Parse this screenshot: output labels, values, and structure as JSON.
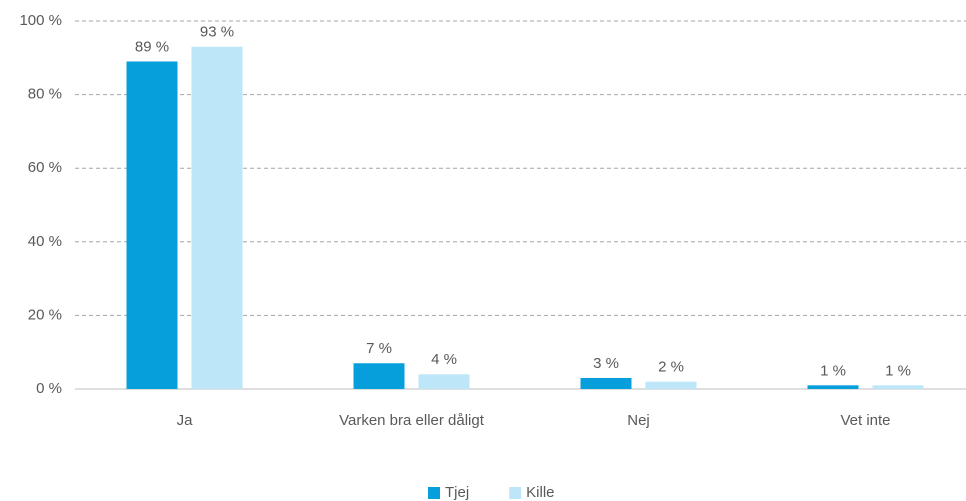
{
  "chart_data": {
    "type": "bar",
    "categories": [
      "Ja",
      "Varken bra eller dåligt",
      "Nej",
      "Vet inte"
    ],
    "series": [
      {
        "name": "Tjej",
        "color": "#069fdc",
        "values": [
          89,
          7,
          3,
          1
        ],
        "value_labels": [
          "89 %",
          "7 %",
          "3 %",
          "1 %"
        ]
      },
      {
        "name": "Kille",
        "color": "#bde6f9",
        "values": [
          93,
          4,
          2,
          1
        ],
        "value_labels": [
          "93 %",
          "4 %",
          "2 %",
          "1 %"
        ]
      }
    ],
    "ylim": [
      0,
      100
    ],
    "yticks": [
      {
        "value": 0,
        "label": "0 %"
      },
      {
        "value": 20,
        "label": "20 %"
      },
      {
        "value": 40,
        "label": "40 %"
      },
      {
        "value": 60,
        "label": "60 %"
      },
      {
        "value": 80,
        "label": "80 %"
      },
      {
        "value": 100,
        "label": "100 %"
      }
    ],
    "grid": true,
    "legend": "bottom"
  }
}
